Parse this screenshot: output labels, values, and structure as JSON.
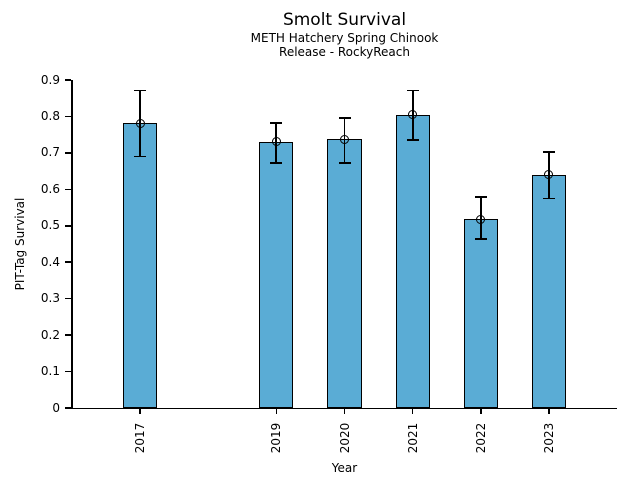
{
  "chart_data": {
    "type": "bar",
    "title": "Smolt Survival",
    "subtitle_lines": [
      "METH Hatchery Spring Chinook",
      "Release - RockyReach"
    ],
    "xlabel": "Year",
    "ylabel": "PIT-Tag Survival",
    "categories": [
      "2017",
      "2019",
      "2020",
      "2021",
      "2022",
      "2023"
    ],
    "x": [
      2017,
      2019,
      2020,
      2021,
      2022,
      2023
    ],
    "values": [
      0.782,
      0.73,
      0.737,
      0.805,
      0.518,
      0.64
    ],
    "error_low": [
      0.69,
      0.673,
      0.672,
      0.735,
      0.464,
      0.575
    ],
    "error_high": [
      0.871,
      0.783,
      0.795,
      0.871,
      0.578,
      0.702
    ],
    "xlim": [
      2016,
      2024
    ],
    "ylim": [
      0,
      0.9
    ],
    "yticks": [
      0,
      0.1,
      0.2,
      0.3,
      0.4,
      0.5,
      0.6,
      0.7,
      0.8,
      0.9
    ],
    "ytick_labels": [
      "0",
      "0.1",
      "0.2",
      "0.3",
      "0.4",
      "0.5",
      "0.6",
      "0.7",
      "0.8",
      "0.9"
    ],
    "bar_width_x_units": 0.5,
    "bar_color": "#5AACD5",
    "bar_edge_color": "#000000",
    "error_bar_color": "#000000",
    "marker": "open-circle",
    "grid": false,
    "legend": null
  }
}
